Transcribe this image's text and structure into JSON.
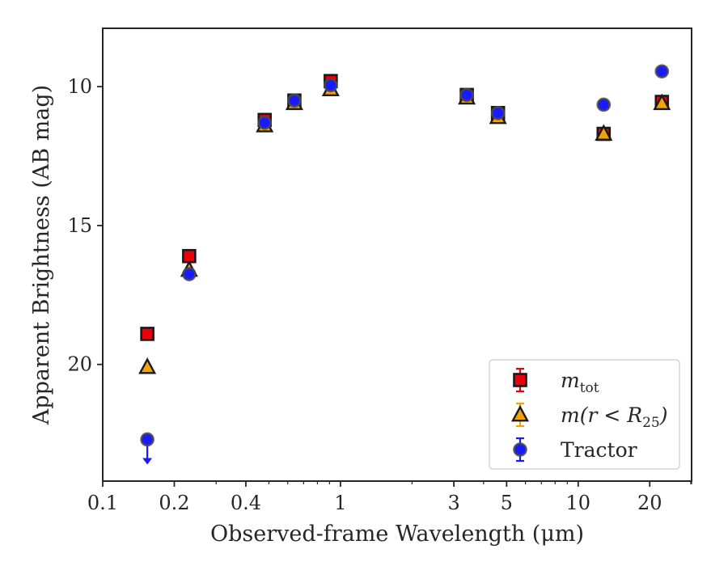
{
  "chart_data": {
    "type": "scatter",
    "xlabel": "Observed-frame Wavelength (μm)",
    "ylabel": "Apparent Brightness (AB mag)",
    "xscale": "log",
    "xlim": [
      0.1,
      30
    ],
    "ylim": [
      24.2,
      7.9
    ],
    "y_inverted": true,
    "x_ticks": [
      {
        "value": 0.1,
        "label": "0.1"
      },
      {
        "value": 0.2,
        "label": "0.2"
      },
      {
        "value": 0.4,
        "label": "0.4"
      },
      {
        "value": 1,
        "label": "1"
      },
      {
        "value": 3,
        "label": "3"
      },
      {
        "value": 5,
        "label": "5"
      },
      {
        "value": 10,
        "label": "10"
      },
      {
        "value": 20,
        "label": "20"
      }
    ],
    "y_ticks": [
      {
        "value": 10,
        "label": "10"
      },
      {
        "value": 15,
        "label": "15"
      },
      {
        "value": 20,
        "label": "20"
      }
    ],
    "legend_position": "lower-right",
    "series": [
      {
        "name_base": "m",
        "name_sub": "tot",
        "marker": "square",
        "color": "#e8000b",
        "points": [
          {
            "x": 0.154,
            "y": 18.9
          },
          {
            "x": 0.231,
            "y": 16.1
          },
          {
            "x": 0.48,
            "y": 11.2
          },
          {
            "x": 0.64,
            "y": 10.5
          },
          {
            "x": 0.91,
            "y": 9.8
          },
          {
            "x": 3.4,
            "y": 10.3
          },
          {
            "x": 4.6,
            "y": 10.95
          },
          {
            "x": 12.8,
            "y": 11.7
          },
          {
            "x": 22.5,
            "y": 10.55
          }
        ]
      },
      {
        "name_base": "m(r < R",
        "name_sub": "25",
        "name_close": ")",
        "marker": "triangle",
        "color": "#f0a30a",
        "points": [
          {
            "x": 0.154,
            "y": 20.1
          },
          {
            "x": 0.231,
            "y": 16.6
          },
          {
            "x": 0.48,
            "y": 11.4
          },
          {
            "x": 0.64,
            "y": 10.6
          },
          {
            "x": 0.91,
            "y": 10.1
          },
          {
            "x": 3.4,
            "y": 10.4
          },
          {
            "x": 4.6,
            "y": 11.1
          },
          {
            "x": 12.8,
            "y": 11.7
          },
          {
            "x": 22.5,
            "y": 10.6
          }
        ]
      },
      {
        "name": "Tractor",
        "marker": "circle",
        "color": "#1a1aff",
        "points": [
          {
            "x": 0.154,
            "y": 22.7,
            "upper_limit": true
          },
          {
            "x": 0.231,
            "y": 16.75
          },
          {
            "x": 0.48,
            "y": 11.3
          },
          {
            "x": 0.64,
            "y": 10.5
          },
          {
            "x": 0.91,
            "y": 9.95
          },
          {
            "x": 3.4,
            "y": 10.3
          },
          {
            "x": 4.6,
            "y": 10.95
          },
          {
            "x": 12.8,
            "y": 10.65
          },
          {
            "x": 22.5,
            "y": 9.45
          }
        ]
      }
    ]
  }
}
